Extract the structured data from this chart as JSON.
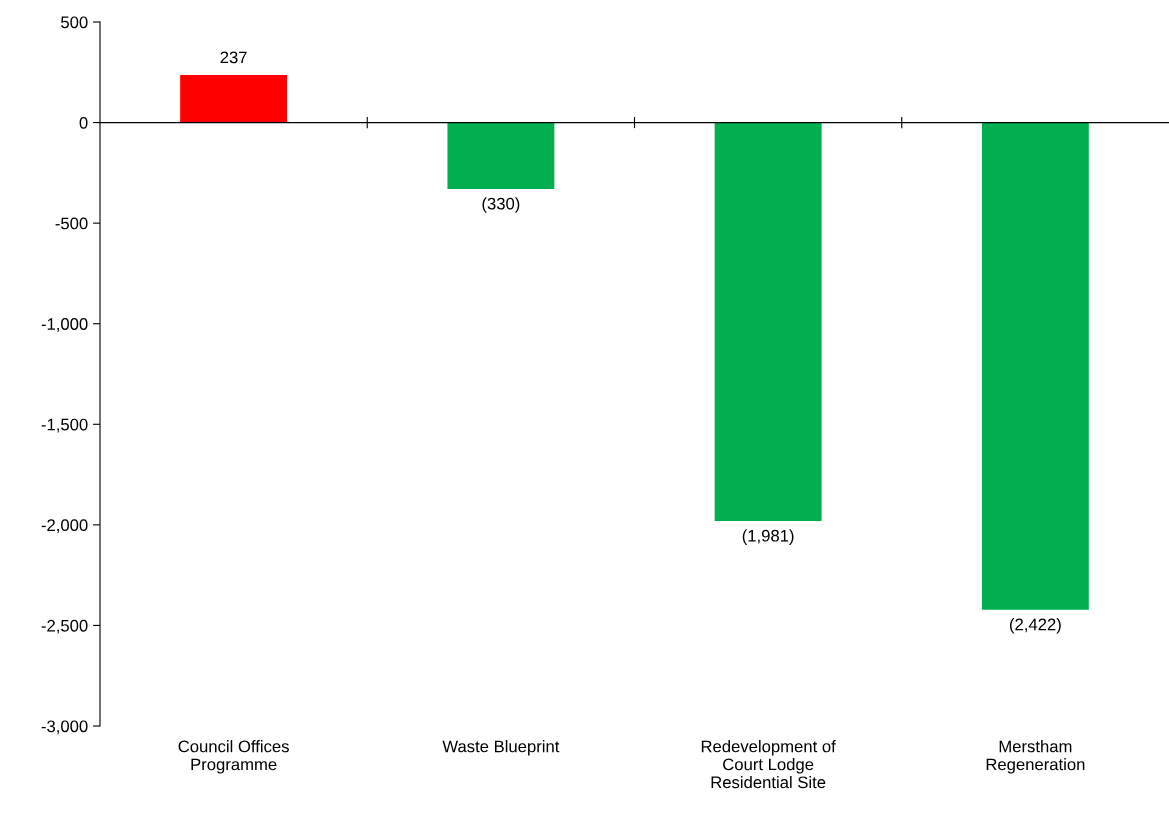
{
  "chart_data": {
    "type": "bar",
    "categories": [
      "Council Offices\nProgramme",
      "Waste Blueprint",
      "Redevelopment of\nCourt Lodge\nResidential Site",
      "Merstham\nRegeneration"
    ],
    "values": [
      237,
      -330,
      -1981,
      -2422
    ],
    "value_labels": [
      "237",
      "(330)",
      "(1,981)",
      "(2,422)"
    ],
    "colors": [
      "#ff0000",
      "#00b050",
      "#00b050",
      "#00b050"
    ],
    "ylim": [
      -3000,
      500
    ],
    "yticks": [
      500,
      0,
      {
        "value": -500,
        "label": "-500"
      },
      {
        "value": -1000,
        "label": "-1,000"
      },
      {
        "value": -1500,
        "label": "-1,500"
      },
      {
        "value": -2000,
        "label": "-2,000"
      },
      {
        "value": -2500,
        "label": "-2,500"
      },
      {
        "value": -3000,
        "label": "-3,000"
      }
    ],
    "legend": false
  }
}
